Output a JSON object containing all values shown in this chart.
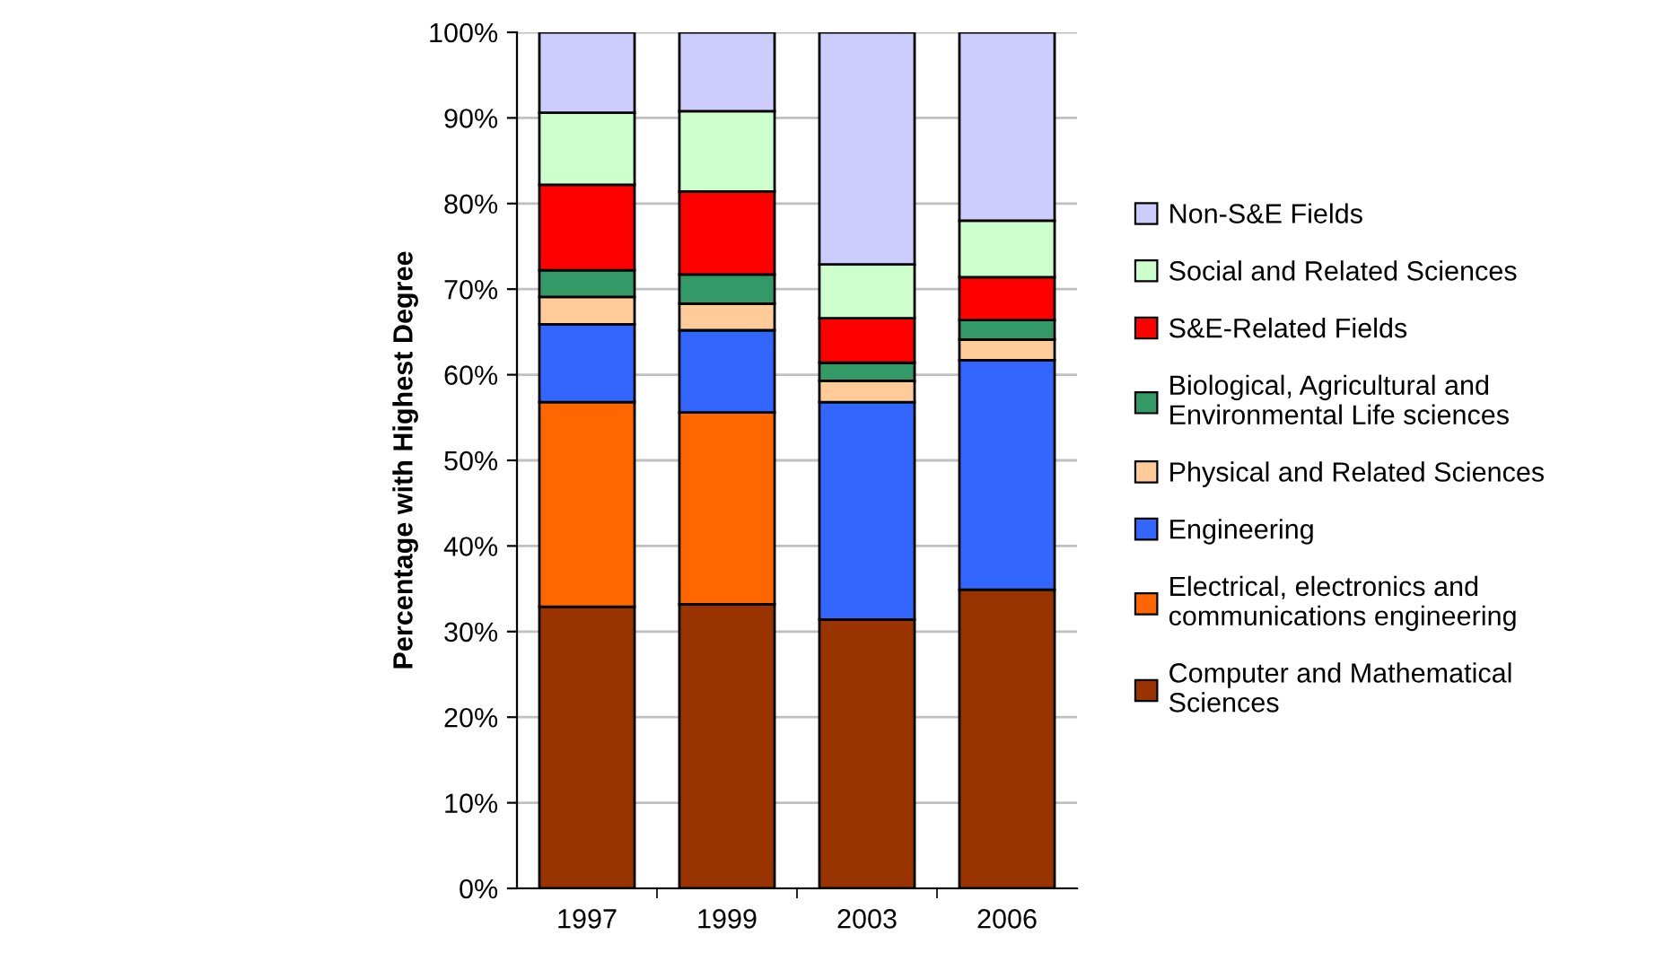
{
  "chart_data": {
    "type": "bar",
    "stacked": true,
    "ylabel": "Percentage with Highest Degree",
    "categories": [
      "1997",
      "1999",
      "2003",
      "2006"
    ],
    "series": [
      {
        "name": "Computer and Mathematical Sciences",
        "color": "#993300",
        "values": [
          32.9,
          33.2,
          31.4,
          34.9
        ]
      },
      {
        "name": "Electrical, electronics and communications engineering",
        "color": "#ff6600",
        "values": [
          23.9,
          22.4,
          null,
          null
        ]
      },
      {
        "name": "Engineering",
        "color": "#3366ff",
        "values": [
          9.1,
          9.6,
          25.4,
          26.8
        ]
      },
      {
        "name": "Physical and Related Sciences",
        "color": "#ffcc99",
        "values": [
          3.2,
          3.1,
          2.5,
          2.4
        ]
      },
      {
        "name": "Biological, Agricultural and Environmental Life sciences",
        "color": "#339966",
        "values": [
          3.1,
          3.4,
          2.1,
          2.3
        ]
      },
      {
        "name": "S&E-Related Fields",
        "color": "#ff0000",
        "values": [
          10.0,
          9.7,
          5.2,
          5.0
        ]
      },
      {
        "name": "Social and Related Sciences",
        "color": "#ccffcc",
        "values": [
          8.4,
          9.4,
          6.3,
          6.6
        ]
      },
      {
        "name": "Non-S&E Fields",
        "color": "#ccccff",
        "values": [
          9.4,
          9.2,
          27.1,
          22.0
        ]
      }
    ],
    "ylim": [
      0,
      100
    ],
    "yticks": [
      {
        "value": 0,
        "label": "0%"
      },
      {
        "value": 10,
        "label": "10%"
      },
      {
        "value": 20,
        "label": "20%"
      },
      {
        "value": 30,
        "label": "30%"
      },
      {
        "value": 40,
        "label": "40%"
      },
      {
        "value": 50,
        "label": "50%"
      },
      {
        "value": 60,
        "label": "60%"
      },
      {
        "value": 70,
        "label": "70%"
      },
      {
        "value": 80,
        "label": "80%"
      },
      {
        "value": 90,
        "label": "90%"
      },
      {
        "value": 100,
        "label": "100%"
      }
    ],
    "grid": "y",
    "legend": "right"
  }
}
